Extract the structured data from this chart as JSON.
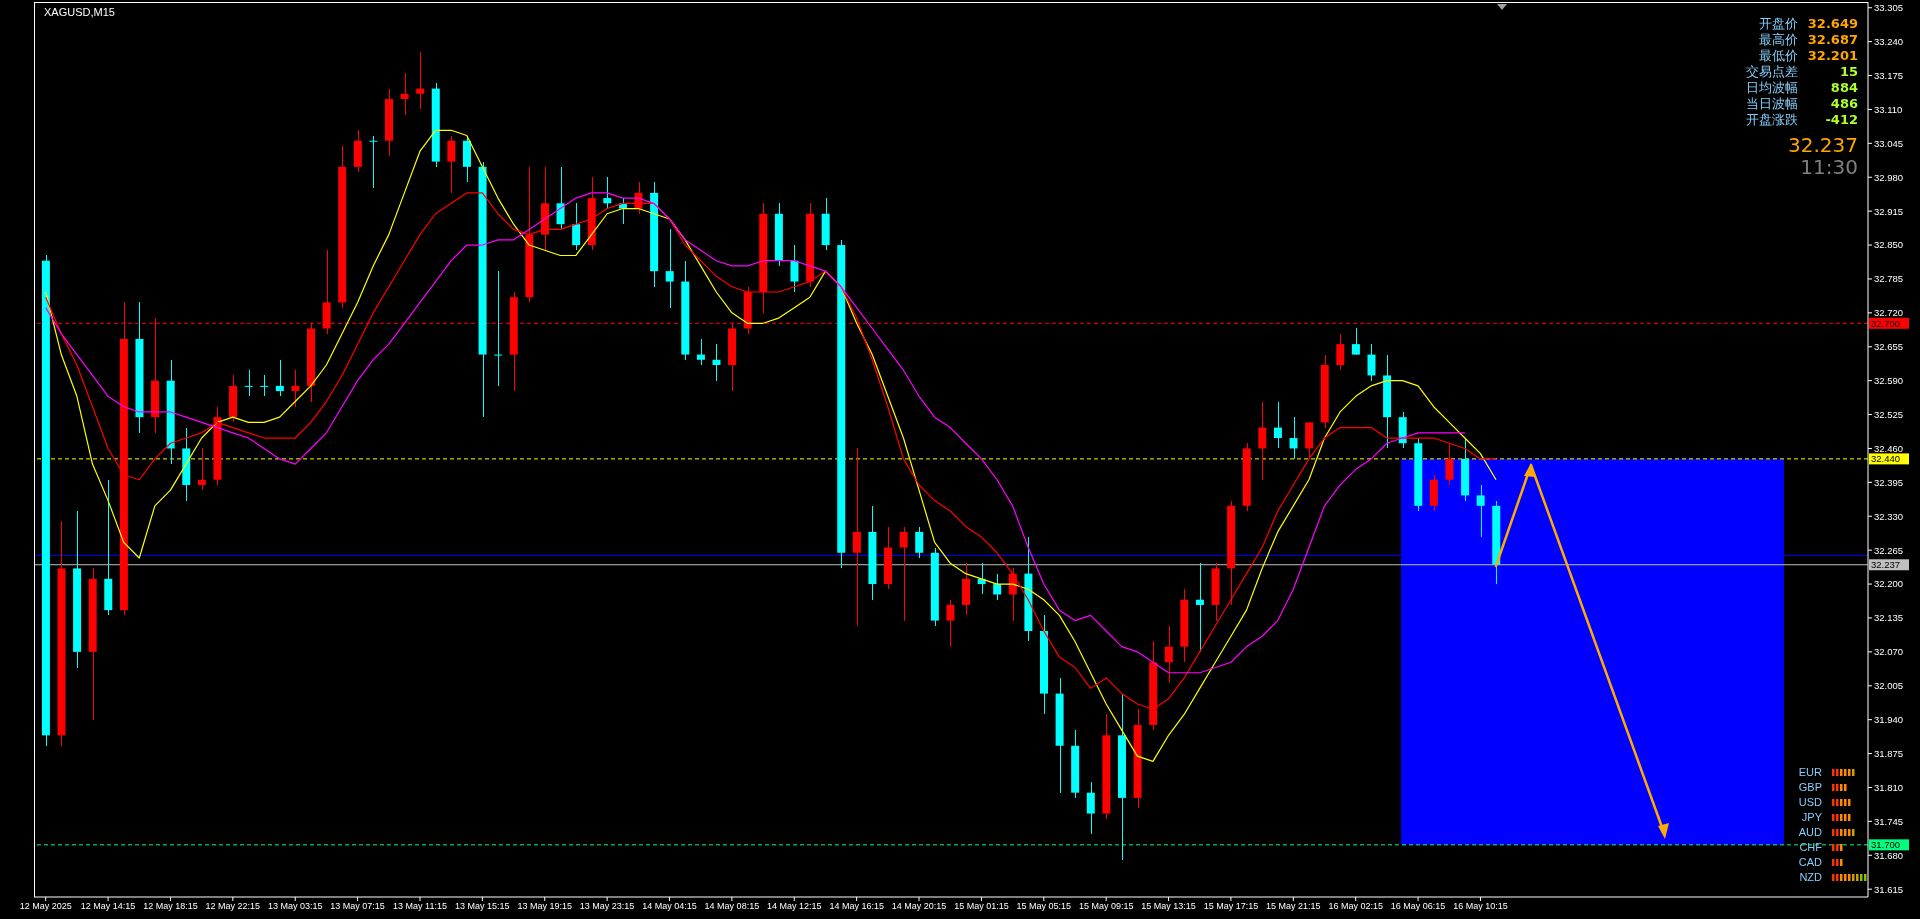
{
  "chart_data": {
    "type": "candlestick",
    "title": "XAGUSD,M15",
    "categories": [
      "12 May 2025",
      null,
      null,
      null,
      "12 May 14:15",
      null,
      null,
      null,
      "12 May 18:15",
      null,
      null,
      null,
      "12 May 22:15",
      null,
      null,
      null,
      "13 May 03:15",
      null,
      null,
      null,
      "13 May 07:15",
      null,
      null,
      null,
      "13 May 11:15",
      null,
      null,
      null,
      "13 May 15:15",
      null,
      null,
      null,
      "13 May 19:15",
      null,
      null,
      null,
      "13 May 23:15",
      null,
      null,
      null,
      "14 May 04:15",
      null,
      null,
      null,
      "14 May 08:15",
      null,
      null,
      null,
      "14 May 12:15",
      null,
      null,
      null,
      "14 May 16:15",
      null,
      null,
      null,
      "14 May 20:15",
      null,
      null,
      null,
      "15 May 01:15",
      null,
      null,
      null,
      "15 May 05:15",
      null,
      null,
      null,
      "15 May 09:15",
      null,
      null,
      null,
      "15 May 13:15",
      null,
      null,
      null,
      "15 May 17:15",
      null,
      null,
      null,
      "15 May 21:15",
      null,
      null,
      null,
      "16 May 02:15",
      null,
      null,
      null,
      "16 May 06:15",
      null,
      null,
      null,
      "16 May 10:15",
      null
    ],
    "ohlc": [
      [
        32.82,
        32.83,
        31.89,
        31.91
      ],
      [
        31.91,
        32.32,
        31.89,
        32.23
      ],
      [
        32.23,
        32.34,
        32.04,
        32.07
      ],
      [
        32.07,
        32.23,
        31.94,
        32.21
      ],
      [
        32.21,
        32.4,
        32.14,
        32.15
      ],
      [
        32.15,
        32.74,
        32.14,
        32.67
      ],
      [
        32.67,
        32.74,
        32.49,
        32.52
      ],
      [
        32.52,
        32.71,
        32.49,
        32.59
      ],
      [
        32.59,
        32.63,
        32.43,
        32.46
      ],
      [
        32.46,
        32.5,
        32.36,
        32.39
      ],
      [
        32.39,
        32.46,
        32.38,
        32.4
      ],
      [
        32.4,
        32.54,
        32.39,
        32.52
      ],
      [
        32.52,
        32.6,
        32.51,
        32.58
      ],
      [
        32.58,
        32.61,
        32.56,
        32.58
      ],
      [
        32.58,
        32.6,
        32.56,
        32.58
      ],
      [
        32.58,
        32.63,
        32.56,
        32.57
      ],
      [
        32.57,
        32.61,
        32.54,
        32.58
      ],
      [
        32.58,
        32.7,
        32.55,
        32.69
      ],
      [
        32.69,
        32.84,
        32.68,
        32.74
      ],
      [
        32.74,
        33.04,
        32.73,
        33.0
      ],
      [
        33.0,
        33.07,
        32.99,
        33.05
      ],
      [
        33.05,
        33.06,
        32.96,
        33.05
      ],
      [
        33.05,
        33.15,
        33.02,
        33.13
      ],
      [
        33.13,
        33.18,
        33.1,
        33.14
      ],
      [
        33.14,
        33.22,
        33.11,
        33.15
      ],
      [
        33.15,
        33.16,
        33.0,
        33.01
      ],
      [
        33.01,
        33.06,
        32.95,
        33.05
      ],
      [
        33.05,
        33.06,
        32.97,
        33.0
      ],
      [
        33.0,
        33.01,
        32.52,
        32.64
      ],
      [
        32.64,
        32.8,
        32.58,
        32.64
      ],
      [
        32.64,
        32.76,
        32.57,
        32.75
      ],
      [
        32.75,
        33.0,
        32.74,
        32.87
      ],
      [
        32.87,
        33.0,
        32.84,
        32.93
      ],
      [
        32.93,
        33.0,
        32.88,
        32.89
      ],
      [
        32.89,
        32.93,
        32.84,
        32.85
      ],
      [
        32.85,
        32.98,
        32.84,
        32.94
      ],
      [
        32.94,
        32.98,
        32.92,
        32.93
      ],
      [
        32.93,
        32.94,
        32.89,
        32.92
      ],
      [
        32.92,
        32.97,
        32.91,
        32.95
      ],
      [
        32.95,
        32.97,
        32.77,
        32.8
      ],
      [
        32.8,
        32.88,
        32.73,
        32.78
      ],
      [
        32.78,
        32.82,
        32.63,
        32.64
      ],
      [
        32.64,
        32.67,
        32.62,
        32.63
      ],
      [
        32.63,
        32.66,
        32.59,
        32.62
      ],
      [
        32.62,
        32.7,
        32.57,
        32.69
      ],
      [
        32.69,
        32.77,
        32.68,
        32.76
      ],
      [
        32.76,
        32.93,
        32.72,
        32.91
      ],
      [
        32.91,
        32.93,
        32.81,
        32.82
      ],
      [
        32.82,
        32.85,
        32.76,
        32.78
      ],
      [
        32.78,
        32.93,
        32.77,
        32.91
      ],
      [
        32.91,
        32.94,
        32.84,
        32.85
      ],
      [
        32.85,
        32.86,
        32.23,
        32.26
      ],
      [
        32.26,
        32.46,
        32.12,
        32.3
      ],
      [
        32.3,
        32.35,
        32.17,
        32.2
      ],
      [
        32.2,
        32.31,
        32.19,
        32.27
      ],
      [
        32.27,
        32.31,
        32.13,
        32.3
      ],
      [
        32.3,
        32.31,
        32.25,
        32.26
      ],
      [
        32.26,
        32.27,
        32.12,
        32.13
      ],
      [
        32.13,
        32.17,
        32.08,
        32.16
      ],
      [
        32.16,
        32.24,
        32.14,
        32.21
      ],
      [
        32.21,
        32.24,
        32.18,
        32.2
      ],
      [
        32.2,
        32.22,
        32.17,
        32.18
      ],
      [
        32.18,
        32.23,
        32.13,
        32.22
      ],
      [
        32.22,
        32.29,
        32.09,
        32.11
      ],
      [
        32.11,
        32.14,
        31.95,
        31.99
      ],
      [
        31.99,
        32.02,
        31.8,
        31.89
      ],
      [
        31.89,
        31.92,
        31.79,
        31.8
      ],
      [
        31.8,
        31.82,
        31.72,
        31.76
      ],
      [
        31.76,
        31.95,
        31.75,
        31.91
      ],
      [
        31.91,
        31.99,
        31.67,
        31.79
      ],
      [
        31.79,
        31.96,
        31.77,
        31.93
      ],
      [
        31.93,
        32.09,
        31.92,
        32.05
      ],
      [
        32.05,
        32.12,
        32.01,
        32.08
      ],
      [
        32.08,
        32.19,
        32.05,
        32.17
      ],
      [
        32.17,
        32.24,
        32.07,
        32.16
      ],
      [
        32.16,
        32.24,
        32.13,
        32.23
      ],
      [
        32.23,
        32.36,
        32.16,
        32.35
      ],
      [
        32.35,
        32.47,
        32.34,
        32.46
      ],
      [
        32.46,
        32.55,
        32.4,
        32.5
      ],
      [
        32.5,
        32.55,
        32.46,
        32.48
      ],
      [
        32.48,
        32.52,
        32.44,
        32.46
      ],
      [
        32.46,
        32.51,
        32.44,
        32.51
      ],
      [
        32.51,
        32.64,
        32.5,
        32.62
      ],
      [
        32.62,
        32.68,
        32.61,
        32.66
      ],
      [
        32.66,
        32.69,
        32.64,
        32.64
      ],
      [
        32.64,
        32.66,
        32.59,
        32.6
      ],
      [
        32.6,
        32.64,
        32.46,
        32.52
      ],
      [
        32.52,
        32.53,
        32.46,
        32.47
      ],
      [
        32.47,
        32.48,
        32.34,
        32.35
      ],
      [
        32.35,
        32.41,
        32.34,
        32.4
      ],
      [
        32.4,
        32.47,
        32.39,
        32.44
      ],
      [
        32.44,
        32.48,
        32.36,
        32.37
      ],
      [
        32.37,
        32.39,
        32.29,
        32.35
      ],
      [
        32.35,
        32.36,
        32.2,
        32.237
      ]
    ],
    "colors": [
      "#00ffff",
      "#ff0000",
      "#00ffff",
      "#ff0000",
      "#00ffff",
      "#ff0000",
      "#00ffff",
      "#ff0000",
      "#00ffff",
      "#00ffff",
      "#ff0000",
      "#ff0000",
      "#ff0000",
      "#00ffff",
      "#00ffff",
      "#00ffff",
      "#ff0000",
      "#ff0000",
      "#ff0000",
      "#ff0000",
      "#ff0000",
      "#00ffff",
      "#ff0000",
      "#ff0000",
      "#ff0000",
      "#00ffff",
      "#ff0000",
      "#00ffff",
      "#00ffff",
      "#00ffff",
      "#ff0000",
      "#ff0000",
      "#ff0000",
      "#00ffff",
      "#00ffff",
      "#ff0000",
      "#00ffff",
      "#00ffff",
      "#ff0000",
      "#00ffff",
      "#00ffff",
      "#00ffff",
      "#00ffff",
      "#00ffff",
      "#ff0000",
      "#ff0000",
      "#ff0000",
      "#00ffff",
      "#00ffff",
      "#ff0000",
      "#00ffff",
      "#00ffff",
      "#ff0000",
      "#00ffff",
      "#ff0000",
      "#ff0000",
      "#00ffff",
      "#00ffff",
      "#ff0000",
      "#ff0000",
      "#00ffff",
      "#00ffff",
      "#ff0000",
      "#00ffff",
      "#00ffff",
      "#00ffff",
      "#00ffff",
      "#00ffff",
      "#ff0000",
      "#00ffff",
      "#ff0000",
      "#ff0000",
      "#ff0000",
      "#ff0000",
      "#00ffff",
      "#ff0000",
      "#ff0000",
      "#ff0000",
      "#ff0000",
      "#00ffff",
      "#00ffff",
      "#ff0000",
      "#ff0000",
      "#ff0000",
      "#00ffff",
      "#00ffff",
      "#00ffff",
      "#00ffff",
      "#00ffff",
      "#ff0000",
      "#ff0000",
      "#00ffff",
      "#00ffff",
      "#00ffff"
    ],
    "series": [
      {
        "type": "line",
        "color": "#ffff00",
        "values": [
          32.76,
          32.64,
          32.56,
          32.43,
          32.36,
          32.28,
          32.25,
          32.35,
          32.38,
          32.43,
          32.48,
          32.51,
          32.52,
          32.51,
          32.51,
          32.52,
          32.55,
          32.58,
          32.62,
          32.68,
          32.74,
          32.81,
          32.87,
          32.95,
          33.03,
          33.07,
          33.07,
          33.06,
          33.0,
          32.94,
          32.89,
          32.85,
          32.84,
          32.83,
          32.83,
          32.87,
          32.91,
          32.92,
          32.92,
          32.91,
          32.9,
          32.86,
          32.81,
          32.76,
          32.72,
          32.7,
          32.7,
          32.71,
          32.73,
          32.75,
          32.8,
          32.77,
          32.7,
          32.64,
          32.56,
          32.48,
          32.38,
          32.28,
          32.24,
          32.22,
          32.21,
          32.2,
          32.2,
          32.19,
          32.17,
          32.14,
          32.09,
          32.03,
          31.97,
          31.92,
          31.87,
          31.86,
          31.91,
          31.95,
          32.0,
          32.05,
          32.1,
          32.15,
          32.23,
          32.3,
          32.35,
          32.4,
          32.48,
          32.53,
          32.56,
          32.58,
          32.59,
          32.59,
          32.58,
          32.54,
          32.51,
          32.48,
          32.45,
          32.4
        ]
      },
      {
        "type": "line",
        "color": "#ff0000",
        "values": [
          32.75,
          32.68,
          32.62,
          32.54,
          32.46,
          32.41,
          32.4,
          32.44,
          32.47,
          32.48,
          32.49,
          32.51,
          32.5,
          32.49,
          32.48,
          32.48,
          32.48,
          32.51,
          32.55,
          32.6,
          32.66,
          32.72,
          32.77,
          32.82,
          32.87,
          32.91,
          32.93,
          32.95,
          32.95,
          32.91,
          32.88,
          32.87,
          32.88,
          32.88,
          32.89,
          32.9,
          32.92,
          32.93,
          32.93,
          32.93,
          32.9,
          32.85,
          32.82,
          32.79,
          32.77,
          32.76,
          32.76,
          32.76,
          32.77,
          32.78,
          32.8,
          32.77,
          32.71,
          32.63,
          32.54,
          32.44,
          32.39,
          32.36,
          32.34,
          32.31,
          32.29,
          32.26,
          32.22,
          32.17,
          32.11,
          32.06,
          32.04,
          32.0,
          32.02,
          31.99,
          31.97,
          31.96,
          31.98,
          32.02,
          32.07,
          32.12,
          32.17,
          32.22,
          32.27,
          32.34,
          32.39,
          32.44,
          32.48,
          32.5,
          32.5,
          32.5,
          32.48,
          32.48,
          32.48,
          32.48,
          32.47,
          32.46,
          32.44,
          32.44
        ]
      },
      {
        "type": "line",
        "color": "#ff00ff",
        "values": [
          32.73,
          32.68,
          32.64,
          32.6,
          32.56,
          32.54,
          32.53,
          32.53,
          32.53,
          32.52,
          32.51,
          32.5,
          32.49,
          32.48,
          32.46,
          32.44,
          32.43,
          32.46,
          32.49,
          32.54,
          32.59,
          32.63,
          32.66,
          32.7,
          32.74,
          32.78,
          32.82,
          32.85,
          32.85,
          32.86,
          32.86,
          32.88,
          32.9,
          32.92,
          32.94,
          32.95,
          32.95,
          32.94,
          32.94,
          32.93,
          32.9,
          32.86,
          32.84,
          32.82,
          32.81,
          32.81,
          32.82,
          32.82,
          32.82,
          32.81,
          32.8,
          32.77,
          32.73,
          32.69,
          32.65,
          32.61,
          32.56,
          32.52,
          32.5,
          32.47,
          32.44,
          32.4,
          32.35,
          32.27,
          32.2,
          32.15,
          32.13,
          32.14,
          32.11,
          32.08,
          32.07,
          32.05,
          32.03,
          32.03,
          32.03,
          32.04,
          32.05,
          32.08,
          32.1,
          32.13,
          32.19,
          32.27,
          32.35,
          32.39,
          32.42,
          32.44,
          32.47,
          32.48,
          32.49,
          32.49,
          32.49,
          32.49,
          null,
          null
        ]
      }
    ],
    "ylim": [
      31.6,
      33.316
    ],
    "yticks": [
      {
        "value": 33.305,
        "label": "33.305"
      },
      {
        "value": 33.24,
        "label": "33.240"
      },
      {
        "value": 33.175,
        "label": "33.175"
      },
      {
        "value": 33.11,
        "label": "33.110"
      },
      {
        "value": 33.045,
        "label": "33.045"
      },
      {
        "value": 32.98,
        "label": "32.980"
      },
      {
        "value": 32.915,
        "label": "32.915"
      },
      {
        "value": 32.85,
        "label": "32.850"
      },
      {
        "value": 32.785,
        "label": "32.785"
      },
      {
        "value": 32.72,
        "label": "32.720"
      },
      {
        "value": 32.655,
        "label": "32.655"
      },
      {
        "value": 32.59,
        "label": "32.590"
      },
      {
        "value": 32.525,
        "label": "32.525"
      },
      {
        "value": 32.46,
        "label": "32.460"
      },
      {
        "value": 32.395,
        "label": "32.395"
      },
      {
        "value": 32.33,
        "label": "32.330"
      },
      {
        "value": 32.265,
        "label": "32.265"
      },
      {
        "value": 32.2,
        "label": "32.200"
      },
      {
        "value": 32.135,
        "label": "32.135"
      },
      {
        "value": 32.07,
        "label": "32.070"
      },
      {
        "value": 32.005,
        "label": "32.005"
      },
      {
        "value": 31.94,
        "label": "31.940"
      },
      {
        "value": 31.875,
        "label": "31.875"
      },
      {
        "value": 31.81,
        "label": "31.810"
      },
      {
        "value": 31.745,
        "label": "31.745"
      },
      {
        "value": 31.68,
        "label": "31.680"
      },
      {
        "value": 31.615,
        "label": "31.615"
      }
    ],
    "bands": [
      {
        "axis": "y",
        "from": 31.7,
        "to": 32.44,
        "color": "#0000ff"
      }
    ],
    "ref_lines": [
      {
        "axis": "y",
        "value": 32.7,
        "label": "32.700",
        "color": "#ff0000",
        "line_style": "dashed"
      },
      {
        "axis": "y",
        "value": 32.44,
        "label": "32.440",
        "color": "#ffff00",
        "line_style": "dashed"
      },
      {
        "axis": "y",
        "value": 32.255,
        "color": "#0000ff",
        "line_style": "solid"
      },
      {
        "axis": "y",
        "value": 32.237,
        "label": "32.237",
        "color": "#c0c0c0",
        "line_style": "solid"
      },
      {
        "axis": "y",
        "value": 31.7,
        "label": "31.700",
        "color": "#00ff7f",
        "line_style": "dashed"
      }
    ],
    "annotations": [
      "开盘价",
      "32.649",
      "最高价",
      "32.687",
      "最低价",
      "32.201",
      "交易点差",
      "15",
      "日均波幅",
      "884",
      "当日波幅",
      "486",
      "开盘涨跌",
      "-412",
      "32.237",
      "11:30",
      "EUR",
      "GBP",
      "USD",
      "JPY",
      "AUD",
      "CHF",
      "CAD",
      "NZD"
    ]
  }
}
